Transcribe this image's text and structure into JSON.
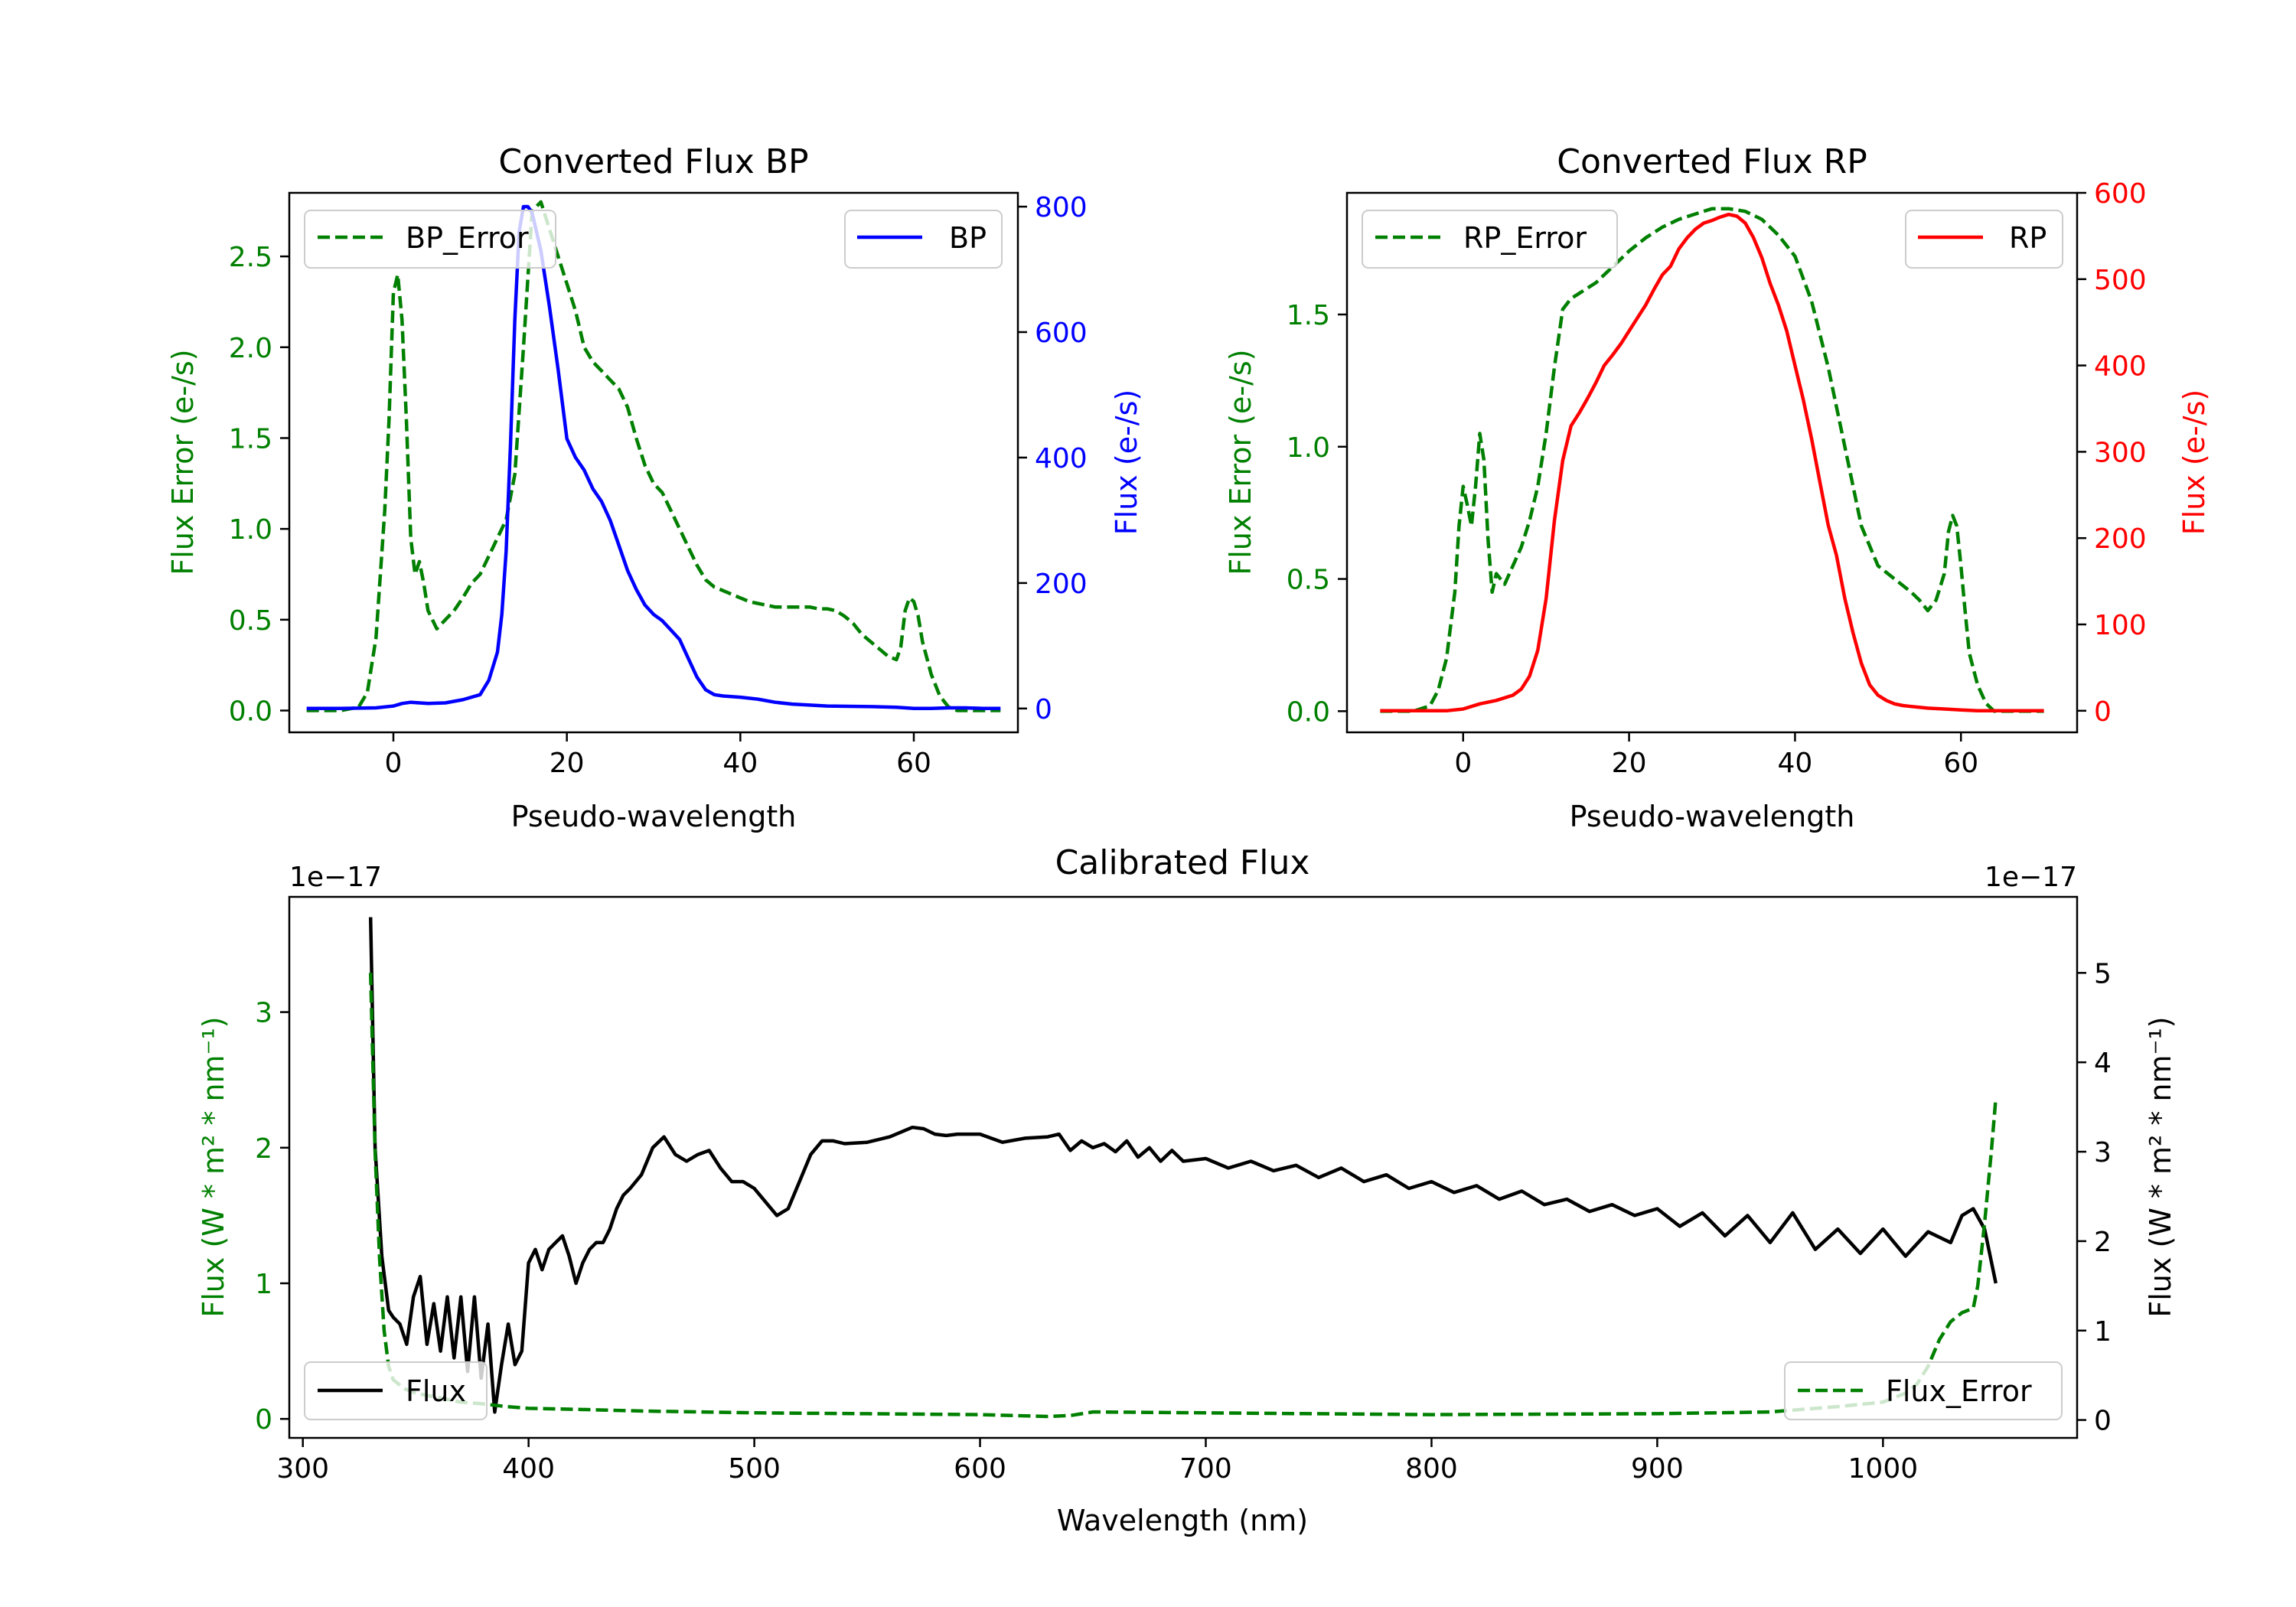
{
  "colors": {
    "bp": "#0000ff",
    "rp": "#ff0000",
    "error": "#008000",
    "flux": "#000000"
  },
  "chart_data": [
    {
      "type": "line",
      "title": "Converted Flux BP",
      "xlabel": "Pseudo-wavelength",
      "ylabel_left": "Flux Error (e-/s)",
      "ylabel_right": "Flux (e-/s)",
      "xlim": [
        -12,
        72
      ],
      "ylim_left": [
        -0.12,
        2.85
      ],
      "ylim_right": [
        -38,
        822
      ],
      "xticks": [
        0,
        20,
        40,
        60
      ],
      "yticks_left": [
        0.0,
        0.5,
        1.0,
        1.5,
        2.0,
        2.5
      ],
      "ytick_labels_left": [
        "0.0",
        "0.5",
        "1.0",
        "1.5",
        "2.0",
        "2.5"
      ],
      "yticks_right": [
        0,
        200,
        400,
        600,
        800
      ],
      "legend_left": "BP_Error",
      "legend_right": "BP",
      "series": [
        {
          "name": "BP_Error",
          "axis": "left",
          "style": "dashed",
          "color": "#008000",
          "x": [
            -10,
            -6,
            -4,
            -3,
            -2,
            -1,
            -0.5,
            0,
            0.5,
            1,
            1.5,
            2,
            2.5,
            3,
            3.5,
            4,
            4.5,
            5,
            6,
            7,
            8,
            9,
            10,
            11,
            12,
            13,
            14,
            15,
            16,
            17,
            18,
            19,
            20,
            21,
            22,
            23,
            24,
            25,
            26,
            27,
            28,
            29,
            30,
            31,
            32,
            33,
            34,
            35,
            36,
            37,
            38,
            39,
            40,
            41,
            42,
            43,
            44,
            45,
            46,
            47,
            48,
            49,
            50,
            51,
            52,
            53,
            54,
            55,
            56,
            57,
            58,
            58.5,
            59,
            59.5,
            60,
            60.5,
            61,
            62,
            63,
            64,
            65,
            66,
            68,
            70
          ],
          "y": [
            0.0,
            0.0,
            0.02,
            0.1,
            0.4,
            1.1,
            1.6,
            2.3,
            2.4,
            2.15,
            1.6,
            0.95,
            0.75,
            0.82,
            0.7,
            0.55,
            0.5,
            0.45,
            0.5,
            0.55,
            0.62,
            0.7,
            0.75,
            0.85,
            0.95,
            1.05,
            1.3,
            2.0,
            2.75,
            2.8,
            2.65,
            2.5,
            2.35,
            2.2,
            2.0,
            1.92,
            1.87,
            1.82,
            1.77,
            1.67,
            1.5,
            1.35,
            1.25,
            1.2,
            1.1,
            1.0,
            0.9,
            0.8,
            0.72,
            0.68,
            0.66,
            0.64,
            0.62,
            0.6,
            0.59,
            0.58,
            0.57,
            0.57,
            0.57,
            0.57,
            0.57,
            0.56,
            0.56,
            0.55,
            0.52,
            0.48,
            0.42,
            0.38,
            0.34,
            0.3,
            0.28,
            0.35,
            0.55,
            0.62,
            0.6,
            0.52,
            0.38,
            0.2,
            0.08,
            0.02,
            0.0,
            0.0,
            0.0,
            0.0
          ]
        },
        {
          "name": "BP",
          "axis": "right",
          "style": "solid",
          "color": "#0000ff",
          "x": [
            -10,
            -6,
            -2,
            0,
            1,
            2,
            3,
            4,
            6,
            8,
            10,
            11,
            12,
            12.5,
            13,
            13.5,
            14,
            14.5,
            15,
            15.5,
            16,
            16.5,
            17,
            18,
            19,
            20,
            21,
            22,
            23,
            24,
            25,
            26,
            27,
            28,
            29,
            30,
            31,
            32,
            33,
            34,
            35,
            36,
            37,
            38,
            40,
            42,
            44,
            46,
            50,
            55,
            58,
            60,
            62,
            64,
            66,
            68,
            70
          ],
          "y": [
            0,
            0,
            1,
            4,
            8,
            10,
            9,
            8,
            9,
            14,
            22,
            45,
            90,
            150,
            250,
            420,
            620,
            760,
            800,
            800,
            790,
            760,
            730,
            640,
            540,
            430,
            400,
            380,
            350,
            330,
            300,
            260,
            220,
            190,
            165,
            150,
            140,
            125,
            110,
            80,
            50,
            30,
            22,
            20,
            18,
            15,
            10,
            7,
            4,
            3,
            2,
            0,
            0,
            1,
            1,
            0,
            0
          ]
        }
      ]
    },
    {
      "type": "line",
      "title": "Converted Flux RP",
      "xlabel": "Pseudo-wavelength",
      "ylabel_left": "Flux Error (e-/s)",
      "ylabel_right": "Flux (e-/s)",
      "xlim": [
        -14,
        74
      ],
      "ylim_left": [
        -0.08,
        1.96
      ],
      "ylim_right": [
        -25,
        600
      ],
      "xticks": [
        0,
        20,
        40,
        60
      ],
      "yticks_left": [
        0.0,
        0.5,
        1.0,
        1.5
      ],
      "ytick_labels_left": [
        "0.0",
        "0.5",
        "1.0",
        "1.5"
      ],
      "yticks_right": [
        0,
        100,
        200,
        300,
        400,
        500,
        600
      ],
      "legend_left": "RP_Error",
      "legend_right": "RP",
      "series": [
        {
          "name": "RP_Error",
          "axis": "left",
          "style": "dashed",
          "color": "#008000",
          "x": [
            -10,
            -6,
            -4,
            -3,
            -2,
            -1,
            -0.5,
            0,
            0.5,
            1,
            1.5,
            2,
            2.5,
            3,
            3.5,
            4,
            5,
            6,
            7,
            8,
            9,
            10,
            11,
            12,
            13,
            14,
            16,
            18,
            20,
            22,
            24,
            26,
            28,
            30,
            32,
            34,
            36,
            38,
            40,
            42,
            44,
            46,
            48,
            50,
            52,
            54,
            55,
            56,
            57,
            58,
            58.5,
            59,
            59.5,
            60,
            60.5,
            61,
            62,
            63,
            64,
            66,
            70
          ],
          "y": [
            0.0,
            0.0,
            0.02,
            0.08,
            0.2,
            0.45,
            0.7,
            0.85,
            0.78,
            0.7,
            0.85,
            1.05,
            0.95,
            0.65,
            0.45,
            0.52,
            0.48,
            0.55,
            0.62,
            0.72,
            0.85,
            1.05,
            1.3,
            1.52,
            1.56,
            1.58,
            1.62,
            1.68,
            1.74,
            1.79,
            1.83,
            1.86,
            1.88,
            1.9,
            1.9,
            1.89,
            1.86,
            1.8,
            1.72,
            1.55,
            1.3,
            1.0,
            0.7,
            0.55,
            0.5,
            0.45,
            0.42,
            0.38,
            0.42,
            0.52,
            0.68,
            0.74,
            0.7,
            0.55,
            0.38,
            0.22,
            0.1,
            0.03,
            0.0,
            0.0,
            0.0
          ]
        },
        {
          "name": "RP",
          "axis": "right",
          "style": "solid",
          "color": "#ff0000",
          "x": [
            -10,
            -6,
            -2,
            0,
            2,
            4,
            6,
            7,
            8,
            9,
            10,
            11,
            12,
            13,
            14,
            15,
            16,
            17,
            18,
            19,
            20,
            21,
            22,
            23,
            24,
            25,
            26,
            27,
            28,
            29,
            30,
            31,
            32,
            33,
            34,
            35,
            36,
            37,
            38,
            39,
            40,
            41,
            42,
            43,
            44,
            45,
            46,
            47,
            48,
            49,
            50,
            51,
            52,
            53,
            54,
            56,
            58,
            60,
            62,
            64,
            66,
            70
          ],
          "y": [
            0,
            0,
            0,
            2,
            8,
            12,
            18,
            25,
            40,
            70,
            130,
            220,
            290,
            330,
            345,
            362,
            380,
            400,
            412,
            425,
            440,
            455,
            470,
            488,
            505,
            515,
            535,
            548,
            558,
            565,
            568,
            572,
            575,
            573,
            565,
            548,
            525,
            495,
            470,
            440,
            400,
            360,
            315,
            265,
            215,
            180,
            130,
            90,
            55,
            30,
            18,
            12,
            8,
            6,
            5,
            3,
            2,
            1,
            0,
            0,
            0,
            0
          ]
        }
      ]
    },
    {
      "type": "line",
      "title": "Calibrated Flux",
      "xlabel": "Wavelength (nm)",
      "ylabel_left": "Flux (W * m² * nm⁻¹)",
      "ylabel_right": "Flux (W * m² * nm⁻¹)",
      "offset_left": "1e−17",
      "offset_right": "1e−17",
      "xlim": [
        294,
        1086
      ],
      "ylim_left": [
        -0.14,
        3.85
      ],
      "ylim_right": [
        -0.2,
        5.85
      ],
      "xticks": [
        300,
        400,
        500,
        600,
        700,
        800,
        900,
        1000
      ],
      "yticks_left": [
        0,
        1,
        2,
        3
      ],
      "ytick_labels_left": [
        "0",
        "1",
        "2",
        "3"
      ],
      "yticks_right": [
        0,
        1,
        2,
        3,
        4,
        5
      ],
      "legend_left": "Flux",
      "legend_right": "Flux_Error",
      "series": [
        {
          "name": "Flux",
          "axis": "left",
          "style": "solid",
          "color": "#000000",
          "x": [
            330,
            332,
            335,
            338,
            340,
            343,
            346,
            349,
            352,
            355,
            358,
            361,
            364,
            367,
            370,
            373,
            376,
            379,
            382,
            385,
            388,
            391,
            394,
            397,
            400,
            403,
            406,
            409,
            412,
            415,
            418,
            421,
            424,
            427,
            430,
            433,
            436,
            439,
            442,
            445,
            450,
            455,
            460,
            465,
            470,
            475,
            480,
            485,
            490,
            495,
            500,
            505,
            510,
            515,
            520,
            525,
            530,
            535,
            540,
            550,
            560,
            570,
            575,
            580,
            585,
            590,
            600,
            610,
            620,
            630,
            635,
            640,
            645,
            650,
            655,
            660,
            665,
            670,
            675,
            680,
            685,
            690,
            700,
            710,
            720,
            730,
            740,
            750,
            760,
            770,
            780,
            790,
            800,
            810,
            820,
            830,
            840,
            850,
            860,
            870,
            880,
            890,
            900,
            910,
            920,
            930,
            940,
            950,
            960,
            970,
            980,
            990,
            1000,
            1010,
            1020,
            1030,
            1035,
            1040,
            1045,
            1050
          ],
          "y": [
            3.7,
            2.0,
            1.2,
            0.8,
            0.75,
            0.7,
            0.55,
            0.9,
            1.05,
            0.55,
            0.85,
            0.5,
            0.9,
            0.45,
            0.9,
            0.35,
            0.9,
            0.3,
            0.7,
            0.05,
            0.4,
            0.7,
            0.4,
            0.5,
            1.15,
            1.25,
            1.1,
            1.25,
            1.3,
            1.35,
            1.2,
            1.0,
            1.15,
            1.25,
            1.3,
            1.3,
            1.4,
            1.55,
            1.65,
            1.7,
            1.8,
            2.0,
            2.08,
            1.95,
            1.9,
            1.95,
            1.98,
            1.85,
            1.75,
            1.75,
            1.7,
            1.6,
            1.5,
            1.55,
            1.75,
            1.95,
            2.05,
            2.05,
            2.03,
            2.04,
            2.08,
            2.15,
            2.14,
            2.1,
            2.09,
            2.1,
            2.1,
            2.04,
            2.07,
            2.08,
            2.1,
            1.98,
            2.05,
            2.0,
            2.03,
            1.97,
            2.05,
            1.93,
            2.0,
            1.9,
            1.98,
            1.9,
            1.92,
            1.85,
            1.9,
            1.83,
            1.87,
            1.78,
            1.85,
            1.75,
            1.8,
            1.7,
            1.75,
            1.67,
            1.72,
            1.62,
            1.68,
            1.58,
            1.62,
            1.53,
            1.58,
            1.5,
            1.55,
            1.42,
            1.52,
            1.35,
            1.5,
            1.3,
            1.52,
            1.25,
            1.4,
            1.22,
            1.4,
            1.2,
            1.38,
            1.3,
            1.5,
            1.55,
            1.4,
            1.0
          ]
        },
        {
          "name": "Flux_Error",
          "axis": "right",
          "style": "dashed",
          "color": "#008000",
          "x": [
            330,
            332,
            334,
            336,
            338,
            340,
            345,
            350,
            360,
            370,
            380,
            390,
            400,
            420,
            450,
            500,
            550,
            600,
            630,
            640,
            650,
            700,
            800,
            900,
            950,
            980,
            1000,
            1010,
            1015,
            1020,
            1025,
            1030,
            1035,
            1040,
            1042,
            1045,
            1048,
            1050
          ],
          "y": [
            5.0,
            3.0,
            1.8,
            1.0,
            0.6,
            0.45,
            0.35,
            0.3,
            0.25,
            0.2,
            0.18,
            0.15,
            0.13,
            0.12,
            0.1,
            0.08,
            0.07,
            0.06,
            0.04,
            0.05,
            0.09,
            0.08,
            0.06,
            0.07,
            0.09,
            0.15,
            0.2,
            0.3,
            0.4,
            0.6,
            0.9,
            1.1,
            1.2,
            1.25,
            1.5,
            2.2,
            3.0,
            3.6
          ]
        }
      ]
    }
  ]
}
